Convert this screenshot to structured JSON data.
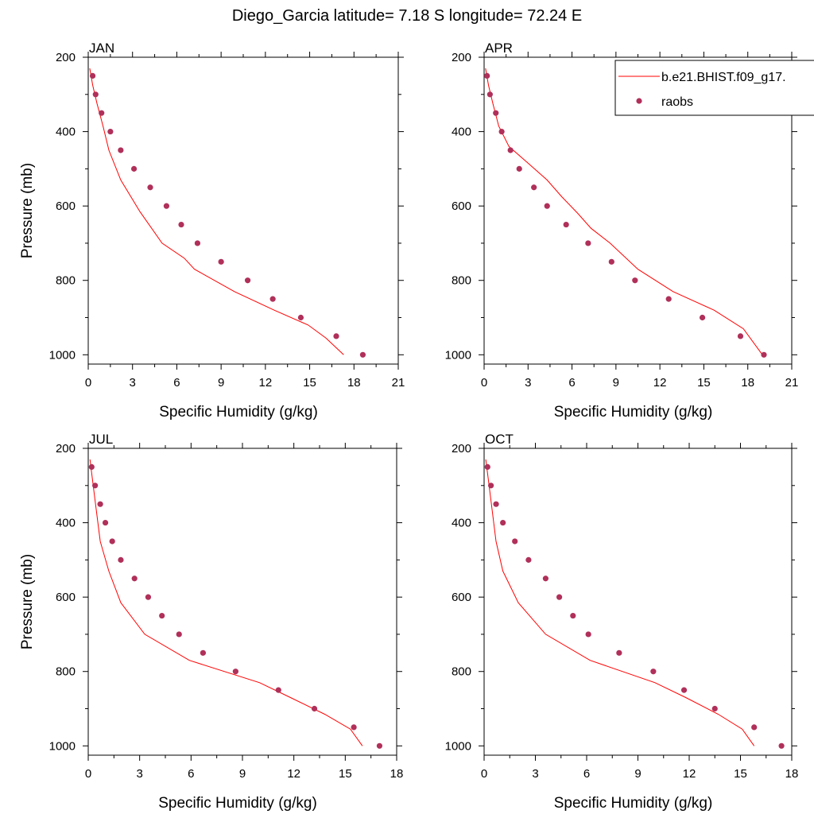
{
  "title": "Diego_Garcia  latitude= 7.18 S longitude= 72.24 E",
  "legend": {
    "model_label": "b.e21.BHIST.f09_g17.",
    "obs_label": "raobs"
  },
  "colors": {
    "model_line": "#ff0000",
    "obs_marker": "#b0305a"
  },
  "chart_data": [
    {
      "type": "line",
      "panel": "JAN",
      "xlabel": "Specific Humidity (g/kg)",
      "ylabel": "Pressure (mb)",
      "xlim": [
        0,
        21
      ],
      "ylim": [
        1025,
        200
      ],
      "xticks": [
        0,
        3,
        6,
        9,
        12,
        15,
        18,
        21
      ],
      "yticks": [
        200,
        400,
        600,
        800,
        1000
      ],
      "series": [
        {
          "name": "b.e21.BHIST.f09_g17.",
          "style": "line",
          "x": [
            0.1,
            0.3,
            0.6,
            1.0,
            1.4,
            2.2,
            3.5,
            5.0,
            6.5,
            7.2,
            9.9,
            12.6,
            14.9,
            16.1,
            17.3
          ],
          "y": [
            230,
            275,
            325,
            385,
            450,
            530,
            615,
            700,
            740,
            770,
            830,
            880,
            920,
            955,
            1000
          ]
        },
        {
          "name": "raobs",
          "style": "scatter",
          "x": [
            0.3,
            0.5,
            0.9,
            1.5,
            2.2,
            3.1,
            4.2,
            5.3,
            6.3,
            7.4,
            9.0,
            10.8,
            12.5,
            14.4,
            16.8,
            18.6
          ],
          "y": [
            250,
            300,
            350,
            400,
            450,
            500,
            550,
            600,
            650,
            700,
            750,
            800,
            850,
            900,
            950,
            1000
          ]
        }
      ]
    },
    {
      "type": "line",
      "panel": "APR",
      "xlabel": "Specific Humidity (g/kg)",
      "ylabel": "",
      "xlim": [
        0,
        21
      ],
      "ylim": [
        1025,
        200
      ],
      "xticks": [
        0,
        3,
        6,
        9,
        12,
        15,
        18,
        21
      ],
      "yticks": [
        200,
        400,
        600,
        800,
        1000
      ],
      "series": [
        {
          "name": "b.e21.BHIST.f09_g17.",
          "style": "line",
          "x": [
            0.1,
            0.3,
            0.6,
            1.0,
            1.7,
            3.0,
            4.3,
            5.3,
            6.4,
            7.3,
            8.6,
            10.5,
            12.9,
            15.7,
            17.7,
            19.0
          ],
          "y": [
            230,
            275,
            325,
            385,
            440,
            485,
            530,
            575,
            620,
            660,
            700,
            770,
            830,
            880,
            930,
            1000
          ]
        },
        {
          "name": "raobs",
          "style": "scatter",
          "x": [
            0.2,
            0.4,
            0.8,
            1.2,
            1.8,
            2.4,
            3.4,
            4.3,
            5.6,
            7.1,
            8.7,
            10.3,
            12.6,
            14.9,
            17.5,
            19.1
          ],
          "y": [
            250,
            300,
            350,
            400,
            450,
            500,
            550,
            600,
            650,
            700,
            750,
            800,
            850,
            900,
            950,
            1000
          ]
        }
      ]
    },
    {
      "type": "line",
      "panel": "JUL",
      "xlabel": "Specific Humidity (g/kg)",
      "ylabel": "Pressure (mb)",
      "xlim": [
        0,
        18
      ],
      "ylim": [
        1025,
        200
      ],
      "xticks": [
        0,
        3,
        6,
        9,
        12,
        15,
        18
      ],
      "yticks": [
        200,
        400,
        600,
        800,
        1000
      ],
      "series": [
        {
          "name": "b.e21.BHIST.f09_g17.",
          "style": "line",
          "x": [
            0.1,
            0.25,
            0.4,
            0.7,
            1.2,
            1.9,
            3.3,
            5.9,
            10.0,
            11.8,
            13.8,
            15.3,
            16.0
          ],
          "y": [
            230,
            285,
            340,
            450,
            530,
            615,
            700,
            770,
            830,
            870,
            915,
            955,
            1000
          ]
        },
        {
          "name": "raobs",
          "style": "scatter",
          "x": [
            0.2,
            0.4,
            0.7,
            1.0,
            1.4,
            1.9,
            2.7,
            3.5,
            4.3,
            5.3,
            6.7,
            8.6,
            11.1,
            13.2,
            15.5,
            17.0
          ],
          "y": [
            250,
            300,
            350,
            400,
            450,
            500,
            550,
            600,
            650,
            700,
            750,
            800,
            850,
            900,
            950,
            1000
          ]
        }
      ]
    },
    {
      "type": "line",
      "panel": "OCT",
      "xlabel": "Specific Humidity (g/kg)",
      "ylabel": "",
      "xlim": [
        0,
        18
      ],
      "ylim": [
        1025,
        200
      ],
      "xticks": [
        0,
        3,
        6,
        9,
        12,
        15,
        18
      ],
      "yticks": [
        200,
        400,
        600,
        800,
        1000
      ],
      "series": [
        {
          "name": "b.e21.BHIST.f09_g17.",
          "style": "line",
          "x": [
            0.1,
            0.25,
            0.4,
            0.7,
            1.1,
            2.0,
            3.6,
            6.2,
            10.0,
            11.8,
            13.7,
            15.1,
            15.8
          ],
          "y": [
            230,
            285,
            340,
            450,
            530,
            615,
            700,
            770,
            830,
            870,
            915,
            955,
            1000
          ]
        },
        {
          "name": "raobs",
          "style": "scatter",
          "x": [
            0.2,
            0.4,
            0.7,
            1.1,
            1.8,
            2.6,
            3.6,
            4.4,
            5.2,
            6.1,
            7.9,
            9.9,
            11.7,
            13.5,
            15.8,
            17.4
          ],
          "y": [
            250,
            300,
            350,
            400,
            450,
            500,
            550,
            600,
            650,
            700,
            750,
            800,
            850,
            900,
            950,
            1000
          ]
        }
      ]
    }
  ]
}
